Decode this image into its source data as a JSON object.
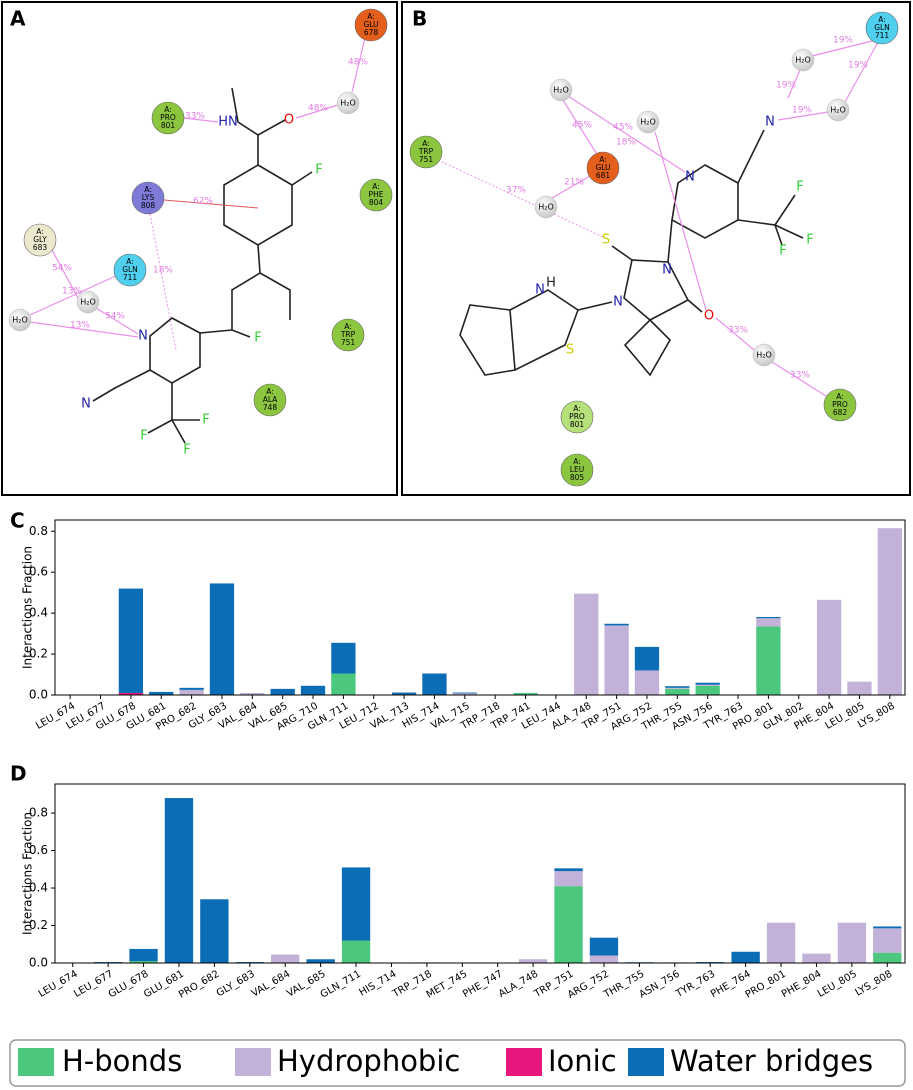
{
  "panel_a": {
    "label": "A",
    "residues": [
      [
        "A:",
        "GLU",
        "678"
      ],
      [
        "A:",
        "PRO",
        "801"
      ],
      [
        "A:",
        "LYS",
        "808"
      ],
      [
        "A:",
        "PHE",
        "804"
      ],
      [
        "A:",
        "GLY",
        "683"
      ],
      [
        "A:",
        "GLN",
        "711"
      ],
      [
        "A:",
        "TRP",
        "751"
      ],
      [
        "A:",
        "ALA",
        "748"
      ]
    ],
    "waters": [
      "H₂O",
      "H₂O",
      "H₂O"
    ],
    "percents": [
      "48%",
      "48%",
      "33%",
      "62%",
      "18%",
      "54%",
      "13%",
      "54%",
      "13%"
    ],
    "atoms": [
      "O",
      "HN",
      "F",
      "F",
      "N",
      "N",
      "F",
      "F",
      "F"
    ]
  },
  "panel_b": {
    "label": "B",
    "residues": [
      [
        "A:",
        "GLN",
        "711"
      ],
      [
        "A:",
        "TRP",
        "751"
      ],
      [
        "A:",
        "GLU",
        "681"
      ],
      [
        "A:",
        "PRO",
        "682"
      ],
      [
        "A:",
        "PRO",
        "801"
      ],
      [
        "A:",
        "LEU",
        "805"
      ]
    ],
    "waters": [
      "H₂O",
      "H₂O",
      "H₂O",
      "H₂O",
      "H₂O",
      "H₂O"
    ],
    "percents": [
      "19%",
      "19%",
      "19%",
      "19%",
      "45%",
      "45%",
      "18%",
      "21%",
      "37%",
      "33%",
      "33%"
    ],
    "atoms": [
      "N",
      "N",
      "F",
      "F",
      "F",
      "S",
      "N",
      "N",
      "O",
      "H",
      "N",
      "S"
    ]
  },
  "chart_data": [
    {
      "type": "bar",
      "stacked": true,
      "panel_label": "C",
      "ylabel": "Interactions Fraction",
      "categories": [
        "LEU_674",
        "LEU_677",
        "GLU_678",
        "GLU_681",
        "PRO_682",
        "GLY_683",
        "VAL_684",
        "VAL_685",
        "ARG_710",
        "GLN_711",
        "LEU_712",
        "VAL_713",
        "HIS_714",
        "VAL_715",
        "TRP_718",
        "TRP_741",
        "LEU_744",
        "ALA_748",
        "TRP_751",
        "ARG_752",
        "THR_755",
        "ASN_756",
        "TYR_763",
        "PRO_801",
        "GLN_802",
        "PHE_804",
        "LEU_805",
        "LYS_808"
      ],
      "series": [
        {
          "name": "H-bonds",
          "color": "#4cc87e",
          "values": [
            0,
            0,
            0,
            0,
            0,
            0,
            0,
            0,
            0,
            0.105,
            0,
            0,
            0,
            0,
            0,
            0.01,
            0,
            0,
            0,
            0,
            0.03,
            0.045,
            0,
            0.335,
            0,
            0,
            0,
            0
          ]
        },
        {
          "name": "Hydrophobic",
          "color": "#c2b1d8",
          "values": [
            0,
            0,
            0,
            0,
            0.025,
            0,
            0.01,
            0,
            0,
            0,
            0,
            0,
            0,
            0.008,
            0,
            0,
            0,
            0.495,
            0.34,
            0.12,
            0.005,
            0.005,
            0,
            0.04,
            0,
            0.465,
            0.065,
            0.815
          ]
        },
        {
          "name": "Ionic",
          "color": "#e8177d",
          "values": [
            0,
            0,
            0.01,
            0,
            0,
            0,
            0,
            0,
            0,
            0,
            0,
            0,
            0,
            0,
            0,
            0,
            0,
            0,
            0,
            0,
            0,
            0,
            0,
            0,
            0,
            0,
            0,
            0
          ]
        },
        {
          "name": "Water bridges",
          "color": "#0a6db5",
          "values": [
            0,
            0,
            0.51,
            0.015,
            0.01,
            0.545,
            0,
            0.03,
            0.045,
            0.15,
            0,
            0.012,
            0.105,
            0.004,
            0,
            0,
            0,
            0,
            0.008,
            0.115,
            0.008,
            0.01,
            0,
            0.006,
            0,
            0,
            0,
            0
          ]
        }
      ],
      "ylim": [
        0,
        0.855
      ],
      "yticks": [
        {
          "value": 0,
          "label": "0.0"
        },
        0.2,
        0.4,
        0.6,
        0.8
      ]
    },
    {
      "type": "bar",
      "stacked": true,
      "panel_label": "D",
      "ylabel": "Interactions Fraction",
      "categories": [
        "LEU_674",
        "LEU_677",
        "GLU_678",
        "GLU_681",
        "PRO_682",
        "GLY_683",
        "VAL_684",
        "VAL_685",
        "GLN_711",
        "HIS_714",
        "TRP_718",
        "MET_745",
        "PHE_747",
        "ALA_748",
        "TRP_751",
        "ARG_752",
        "THR_755",
        "ASN_756",
        "TYR_763",
        "PHE_764",
        "PRO_801",
        "PHE_804",
        "LEU_805",
        "LYS_808"
      ],
      "series": [
        {
          "name": "H-bonds",
          "color": "#4cc87e",
          "values": [
            0,
            0,
            0.01,
            0,
            0,
            0,
            0,
            0,
            0.12,
            0,
            0,
            0,
            0,
            0,
            0.41,
            0,
            0,
            0,
            0,
            0,
            0,
            0,
            0,
            0.055
          ]
        },
        {
          "name": "Hydrophobic",
          "color": "#c2b1d8",
          "values": [
            0,
            0,
            0,
            0,
            0,
            0,
            0.045,
            0,
            0,
            0,
            0,
            0,
            0,
            0.02,
            0.08,
            0.04,
            0,
            0,
            0,
            0,
            0.215,
            0.05,
            0.215,
            0.13
          ]
        },
        {
          "name": "Ionic",
          "color": "#e8177d",
          "values": [
            0,
            0,
            0,
            0,
            0,
            0,
            0,
            0,
            0,
            0,
            0,
            0,
            0,
            0,
            0,
            0,
            0,
            0,
            0,
            0,
            0,
            0,
            0,
            0
          ]
        },
        {
          "name": "Water bridges",
          "color": "#0a6db5",
          "values": [
            0,
            0.005,
            0.065,
            0.88,
            0.34,
            0.005,
            0,
            0.02,
            0.39,
            0,
            0.003,
            0,
            0,
            0,
            0.015,
            0.095,
            0.004,
            0.003,
            0.005,
            0.06,
            0,
            0,
            0,
            0.01
          ]
        }
      ],
      "ylim": [
        0,
        0.955
      ],
      "yticks": [
        {
          "value": 0,
          "label": "0.0"
        },
        0.2,
        0.4,
        0.6,
        0.8
      ]
    }
  ]
}
